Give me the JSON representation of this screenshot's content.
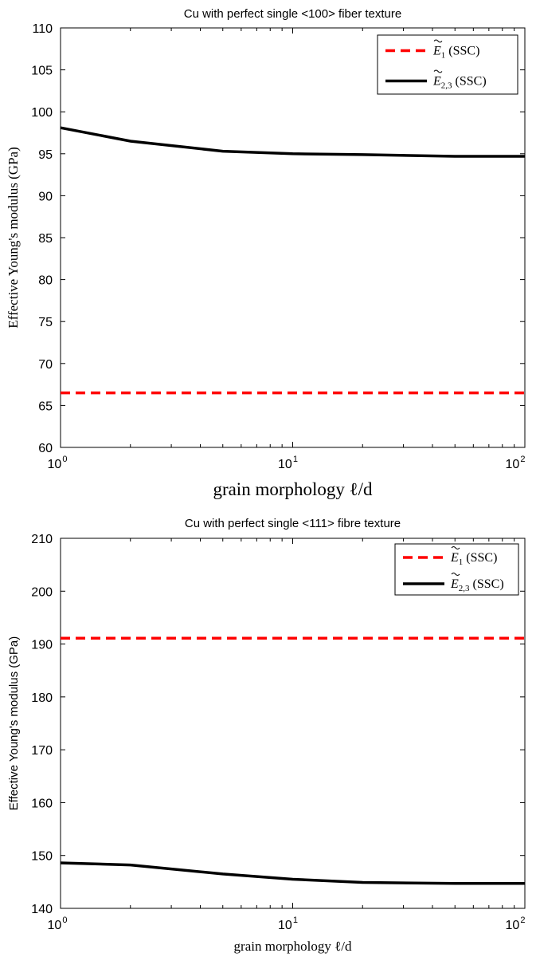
{
  "chart_data": [
    {
      "type": "line",
      "title": "Cu with perfect single <100> fiber texture",
      "xlabel": "grain morphology ℓ/d",
      "ylabel": "Effective Young's modulus (GPa)",
      "xscale": "log",
      "xlim": [
        1,
        100
      ],
      "ylim": [
        60,
        110
      ],
      "yticks": [
        60,
        65,
        70,
        75,
        80,
        85,
        90,
        95,
        100,
        105,
        110
      ],
      "xticks": [
        {
          "value": 1,
          "base": "10",
          "exp": "0"
        },
        {
          "value": 10,
          "base": "10",
          "exp": "1"
        },
        {
          "value": 100,
          "base": "10",
          "exp": "2"
        }
      ],
      "legend_position": "top-right",
      "series": [
        {
          "name": "Ẽ1 (SSC)",
          "legend_main": "E",
          "legend_sub": "1",
          "legend_suffix": "(SSC)",
          "color": "#ff0000",
          "style": "dashed",
          "x": [
            1,
            2,
            5,
            10,
            20,
            50,
            100
          ],
          "y": [
            66.5,
            66.5,
            66.5,
            66.5,
            66.5,
            66.5,
            66.5
          ]
        },
        {
          "name": "Ẽ2,3 (SSC)",
          "legend_main": "E",
          "legend_sub": "2,3",
          "legend_suffix": "(SSC)",
          "color": "#000000",
          "style": "solid",
          "x": [
            1,
            2,
            5,
            10,
            20,
            50,
            100
          ],
          "y": [
            98.1,
            96.5,
            95.3,
            95.0,
            94.9,
            94.7,
            94.7
          ]
        }
      ]
    },
    {
      "type": "line",
      "title": "Cu with perfect single <111> fibre texture",
      "xlabel": "grain morphology ℓ/d",
      "ylabel": "Effective Young's modulus (GPa)",
      "xscale": "log",
      "xlim": [
        1,
        100
      ],
      "ylim": [
        140,
        210
      ],
      "yticks": [
        140,
        150,
        160,
        170,
        180,
        190,
        200,
        210
      ],
      "xticks": [
        {
          "value": 1,
          "base": "10",
          "exp": "0"
        },
        {
          "value": 10,
          "base": "10",
          "exp": "1"
        },
        {
          "value": 100,
          "base": "10",
          "exp": "2"
        }
      ],
      "legend_position": "top-right",
      "series": [
        {
          "name": "Ẽ1 (SSC)",
          "legend_main": "E",
          "legend_sub": "1",
          "legend_suffix": "(SSC)",
          "color": "#ff0000",
          "style": "dashed",
          "x": [
            1,
            2,
            5,
            10,
            20,
            50,
            100
          ],
          "y": [
            191.1,
            191.1,
            191.1,
            191.1,
            191.1,
            191.1,
            191.1
          ]
        },
        {
          "name": "Ẽ2,3 (SSC)",
          "legend_main": "E",
          "legend_sub": "2,3",
          "legend_suffix": "(SSC)",
          "color": "#000000",
          "style": "solid",
          "x": [
            1,
            2,
            5,
            10,
            20,
            50,
            100
          ],
          "y": [
            148.6,
            148.2,
            146.5,
            145.5,
            144.9,
            144.7,
            144.7
          ]
        }
      ]
    }
  ]
}
